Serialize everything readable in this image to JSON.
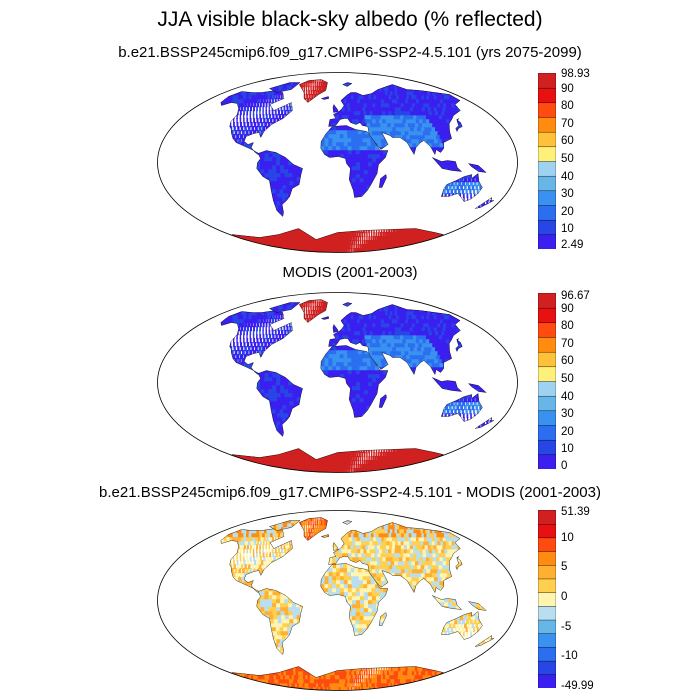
{
  "title": "JJA visible black-sky albedo (% reflected)",
  "panels": [
    {
      "id": "model",
      "title": "b.e21.BSSP245cmip6.f09_g17.CMIP6-SSP2-4.5.101 (yrs 2075-2099)",
      "colorbar": {
        "max_label": "98.93",
        "min_label": "2.49",
        "labels": [
          "90",
          "80",
          "70",
          "60",
          "50",
          "40",
          "30",
          "20",
          "10"
        ],
        "colors": [
          "#3b1ff0",
          "#2846e6",
          "#2c6ef0",
          "#3a92f0",
          "#66b6e8",
          "#9fd2f0",
          "#fff07a",
          "#ffc13a",
          "#ff8c10",
          "#ff4a10",
          "#e81010",
          "#d02020"
        ]
      },
      "fill": "land_albedo_model"
    },
    {
      "id": "obs",
      "title": "MODIS (2001-2003)",
      "colorbar": {
        "max_label": "96.67",
        "min_label": "0",
        "labels": [
          "90",
          "80",
          "70",
          "60",
          "50",
          "40",
          "30",
          "20",
          "10"
        ],
        "colors": [
          "#3b1ff0",
          "#2846e6",
          "#2c6ef0",
          "#3a92f0",
          "#66b6e8",
          "#9fd2f0",
          "#fff07a",
          "#ffc13a",
          "#ff8c10",
          "#ff4a10",
          "#e81010",
          "#d02020"
        ]
      },
      "fill": "land_albedo_obs"
    },
    {
      "id": "diff",
      "title": "b.e21.BSSP245cmip6.f09_g17.CMIP6-SSP2-4.5.101 - MODIS (2001-2003)",
      "colorbar": {
        "max_label": "51.39",
        "min_label": "-49.99",
        "labels": [
          "10",
          "5",
          "0",
          "-5",
          "-10"
        ],
        "colors": [
          "#3b1ff0",
          "#2846e6",
          "#2c6ef0",
          "#3a92f0",
          "#66b6e8",
          "#b8def0",
          "#fff5b0",
          "#ffd050",
          "#ffb030",
          "#ff8c10",
          "#ff4a10",
          "#e81010",
          "#d02020"
        ]
      },
      "fill": "land_albedo_diff"
    }
  ]
}
